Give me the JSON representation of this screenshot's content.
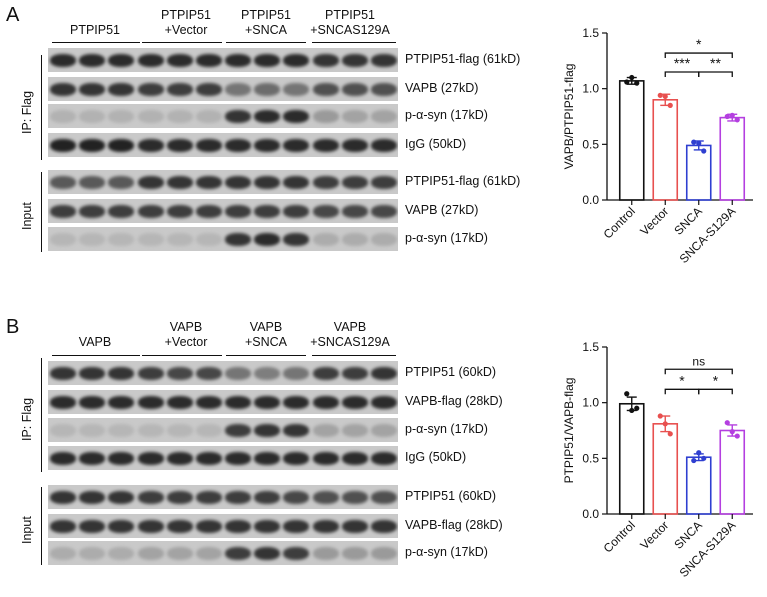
{
  "panels": [
    {
      "letter": "A",
      "groups": [
        "PTPIP51",
        "PTPIP51\n+Vector",
        "PTPIP51\n+SNCA",
        "PTPIP51\n+SNCAS129A"
      ],
      "ip_label": "IP: Flag",
      "input_label": "Input",
      "ip_blots": [
        {
          "label": "PTPIP51-flag (61kD)",
          "intensity": [
            0.85,
            0.85,
            0.85,
            0.85,
            0.85,
            0.85,
            0.85,
            0.85,
            0.85,
            0.8,
            0.8,
            0.8
          ]
        },
        {
          "label": "VAPB (27kD)",
          "intensity": [
            0.8,
            0.8,
            0.8,
            0.75,
            0.75,
            0.75,
            0.45,
            0.5,
            0.45,
            0.65,
            0.65,
            0.65
          ]
        },
        {
          "label": "p-α-syn (17kD)",
          "intensity": [
            0.12,
            0.12,
            0.12,
            0.12,
            0.12,
            0.12,
            0.8,
            0.85,
            0.85,
            0.25,
            0.2,
            0.2
          ]
        },
        {
          "label": "IgG (50kD)",
          "intensity": [
            0.9,
            0.9,
            0.9,
            0.85,
            0.85,
            0.85,
            0.85,
            0.85,
            0.85,
            0.85,
            0.85,
            0.85
          ]
        }
      ],
      "input_blots": [
        {
          "label": "PTPIP51-flag (61kD)",
          "intensity": [
            0.6,
            0.6,
            0.6,
            0.8,
            0.8,
            0.8,
            0.8,
            0.8,
            0.8,
            0.75,
            0.75,
            0.75
          ]
        },
        {
          "label": "VAPB (27kD)",
          "intensity": [
            0.75,
            0.75,
            0.75,
            0.75,
            0.75,
            0.75,
            0.75,
            0.75,
            0.75,
            0.7,
            0.7,
            0.7
          ]
        },
        {
          "label": "p-α-syn (17kD)",
          "intensity": [
            0.1,
            0.1,
            0.1,
            0.1,
            0.1,
            0.1,
            0.8,
            0.85,
            0.8,
            0.15,
            0.15,
            0.15
          ]
        }
      ]
    },
    {
      "letter": "B",
      "groups": [
        "VAPB",
        "VAPB\n+Vector",
        "VAPB\n+SNCA",
        "VAPB\n+SNCAS129A"
      ],
      "ip_label": "IP: Flag",
      "input_label": "Input",
      "ip_blots": [
        {
          "label": "PTPIP51 (60kD)",
          "intensity": [
            0.8,
            0.8,
            0.8,
            0.75,
            0.7,
            0.7,
            0.45,
            0.4,
            0.45,
            0.75,
            0.75,
            0.8
          ]
        },
        {
          "label": "VAPB-flag (28kD)",
          "intensity": [
            0.85,
            0.85,
            0.85,
            0.85,
            0.85,
            0.85,
            0.85,
            0.85,
            0.85,
            0.85,
            0.85,
            0.85
          ]
        },
        {
          "label": "p-α-syn (17kD)",
          "intensity": [
            0.1,
            0.1,
            0.1,
            0.1,
            0.1,
            0.1,
            0.75,
            0.8,
            0.8,
            0.2,
            0.2,
            0.2
          ]
        },
        {
          "label": "IgG (50kD)",
          "intensity": [
            0.85,
            0.85,
            0.85,
            0.85,
            0.85,
            0.85,
            0.85,
            0.85,
            0.85,
            0.85,
            0.85,
            0.85
          ]
        }
      ],
      "input_blots": [
        {
          "label": "PTPIP51 (60kD)",
          "intensity": [
            0.8,
            0.8,
            0.8,
            0.75,
            0.75,
            0.75,
            0.75,
            0.75,
            0.7,
            0.65,
            0.65,
            0.65
          ]
        },
        {
          "label": "VAPB-flag (28kD)",
          "intensity": [
            0.8,
            0.8,
            0.8,
            0.8,
            0.8,
            0.8,
            0.8,
            0.8,
            0.8,
            0.8,
            0.8,
            0.8
          ]
        },
        {
          "label": "p-α-syn (17kD)",
          "intensity": [
            0.15,
            0.15,
            0.15,
            0.2,
            0.2,
            0.2,
            0.75,
            0.8,
            0.75,
            0.25,
            0.25,
            0.25
          ]
        }
      ]
    }
  ],
  "chart_data": [
    {
      "type": "bar",
      "ylabel": "VAPB/PTPIP51-flag",
      "ylim": [
        0,
        1.5
      ],
      "yticks": [
        "0.0",
        "0.5",
        "1.0",
        "1.5"
      ],
      "categories": [
        "Control",
        "Vector",
        "SNCA",
        "SNCA-S129A"
      ],
      "values": [
        1.07,
        0.9,
        0.49,
        0.74
      ],
      "errors": [
        0.03,
        0.05,
        0.04,
        0.03
      ],
      "points": [
        [
          1.06,
          1.05,
          1.1
        ],
        [
          0.94,
          0.85,
          0.93
        ],
        [
          0.52,
          0.44,
          0.51
        ],
        [
          0.75,
          0.72,
          0.76
        ]
      ],
      "colors": [
        "#111111",
        "#e8504f",
        "#2f3fd0",
        "#b43fe0"
      ],
      "significance": [
        {
          "from": 1,
          "to": 3,
          "label": "*",
          "level": 1.32
        },
        {
          "from": 1,
          "to": 2,
          "label": "***",
          "level": 1.15
        },
        {
          "from": 2,
          "to": 3,
          "label": "**",
          "level": 1.15
        }
      ]
    },
    {
      "type": "bar",
      "ylabel": "PTPIP51/VAPB-flag",
      "ylim": [
        0,
        1.5
      ],
      "yticks": [
        "0.0",
        "0.5",
        "1.0",
        "1.5"
      ],
      "categories": [
        "Control",
        "Vector",
        "SNCA",
        "SNCA-S129A"
      ],
      "values": [
        0.99,
        0.81,
        0.51,
        0.75
      ],
      "errors": [
        0.06,
        0.07,
        0.03,
        0.05
      ],
      "points": [
        [
          1.08,
          0.95,
          0.93
        ],
        [
          0.88,
          0.72,
          0.81
        ],
        [
          0.48,
          0.5,
          0.55
        ],
        [
          0.82,
          0.7,
          0.74
        ]
      ],
      "colors": [
        "#111111",
        "#e8504f",
        "#2f3fd0",
        "#b43fe0"
      ],
      "significance": [
        {
          "from": 1,
          "to": 3,
          "label": "ns",
          "level": 1.3
        },
        {
          "from": 1,
          "to": 2,
          "label": "*",
          "level": 1.12
        },
        {
          "from": 2,
          "to": 3,
          "label": "*",
          "level": 1.12
        }
      ]
    }
  ]
}
